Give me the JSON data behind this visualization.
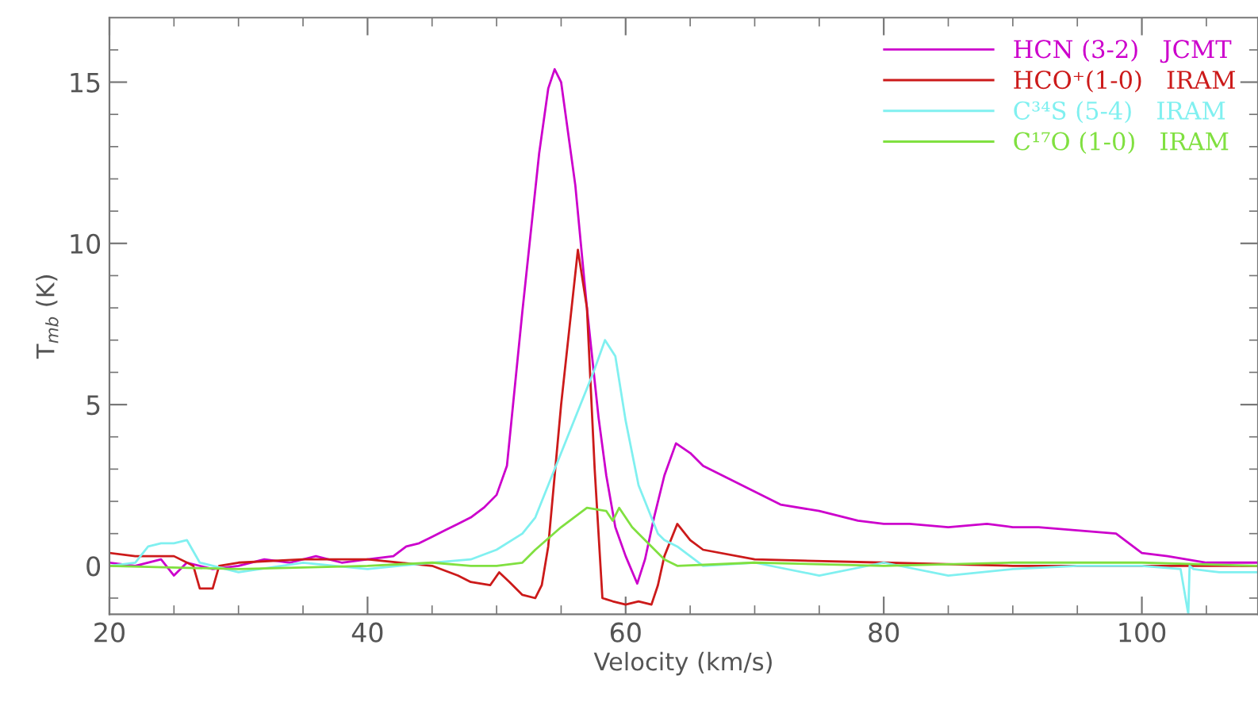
{
  "chart_data": {
    "type": "line",
    "xlabel": "Velocity (km/s)",
    "ylabel": "T$_{mb}$ (K)",
    "xlim": [
      20,
      109
    ],
    "ylim": [
      -1.5,
      17
    ],
    "xticks": [
      20,
      {
        "value": 25,
        "label": null
      },
      {
        "value": 30,
        "label": null
      },
      {
        "value": 35,
        "label": null
      },
      40,
      {
        "value": 45,
        "label": null
      },
      {
        "value": 50,
        "label": null
      },
      {
        "value": 55,
        "label": null
      },
      60,
      {
        "value": 65,
        "label": null
      },
      {
        "value": 70,
        "label": null
      },
      {
        "value": 75,
        "label": null
      },
      80,
      {
        "value": 85,
        "label": null
      },
      {
        "value": 90,
        "label": null
      },
      {
        "value": 95,
        "label": null
      },
      100,
      {
        "value": 105,
        "label": null
      }
    ],
    "yticks": [
      {
        "value": -1,
        "label": null
      },
      0,
      {
        "value": 1,
        "label": null
      },
      {
        "value": 2,
        "label": null
      },
      {
        "value": 3,
        "label": null
      },
      {
        "value": 4,
        "label": null
      },
      5,
      {
        "value": 6,
        "label": null
      },
      {
        "value": 7,
        "label": null
      },
      {
        "value": 8,
        "label": null
      },
      {
        "value": 9,
        "label": null
      },
      10,
      {
        "value": 11,
        "label": null
      },
      {
        "value": 12,
        "label": null
      },
      {
        "value": 13,
        "label": null
      },
      {
        "value": 14,
        "label": null
      },
      15,
      {
        "value": 16,
        "label": null
      }
    ],
    "grid": false,
    "legend": "top right",
    "marker": "none",
    "line_style": "solid",
    "series": [
      {
        "name": "HCN (3-2)   JCMT",
        "color": "#cc00cc",
        "x": [
          20,
          22,
          24,
          25,
          26,
          28,
          30,
          32,
          34,
          36,
          38,
          40,
          42,
          43,
          44,
          45,
          46,
          47,
          48,
          49,
          50,
          50.8,
          52,
          53.3,
          54,
          54.5,
          55,
          56.1,
          57,
          57.9,
          58.5,
          59.2,
          60,
          60.9,
          61.5,
          62.2,
          63,
          63.9,
          65,
          66,
          68,
          70,
          72,
          75,
          78,
          80,
          82,
          85,
          88,
          90,
          92,
          95,
          98,
          100,
          102,
          105,
          109
        ],
        "values": [
          0.1,
          0.0,
          0.2,
          -0.3,
          0.1,
          -0.1,
          0.0,
          0.2,
          0.1,
          0.3,
          0.1,
          0.2,
          0.3,
          0.6,
          0.7,
          0.9,
          1.1,
          1.3,
          1.5,
          1.8,
          2.2,
          3.1,
          7.9,
          12.8,
          14.8,
          15.4,
          15.0,
          11.8,
          8.0,
          4.6,
          2.8,
          1.2,
          0.3,
          -0.55,
          0.2,
          1.5,
          2.8,
          3.8,
          3.5,
          3.1,
          2.7,
          2.3,
          1.9,
          1.7,
          1.4,
          1.3,
          1.3,
          1.2,
          1.3,
          1.2,
          1.2,
          1.1,
          1.0,
          0.4,
          0.3,
          0.1,
          0.1
        ]
      },
      {
        "name": "HCO⁺(1-0)   IRAM",
        "color": "#cc1a1a",
        "x": [
          20,
          22,
          25,
          26.5,
          27,
          28,
          28.5,
          30,
          35,
          40,
          45,
          47,
          48,
          49.5,
          50.2,
          51,
          52,
          53,
          53.5,
          54,
          55,
          56.3,
          57,
          57.6,
          58.2,
          59,
          60,
          61,
          62,
          62.5,
          63,
          64,
          65,
          66,
          70,
          80,
          90,
          100,
          109
        ],
        "values": [
          0.4,
          0.3,
          0.3,
          0.0,
          -0.7,
          -0.7,
          0.0,
          0.1,
          0.2,
          0.2,
          0.0,
          -0.3,
          -0.5,
          -0.6,
          -0.2,
          -0.5,
          -0.9,
          -1.0,
          -0.6,
          0.6,
          5.0,
          9.8,
          8.0,
          3.0,
          -1.0,
          -1.1,
          -1.2,
          -1.1,
          -1.2,
          -0.6,
          0.3,
          1.3,
          0.8,
          0.5,
          0.2,
          0.1,
          0.0,
          0.0,
          0.0
        ]
      },
      {
        "name": "C³⁴S (5-4)   IRAM",
        "color": "#80f0f0",
        "x": [
          20,
          22,
          23,
          24,
          25,
          26,
          27,
          30,
          35,
          40,
          45,
          48,
          50,
          52,
          53,
          55,
          56.5,
          57.5,
          58.4,
          59.2,
          60,
          61,
          61.5,
          62.5,
          63,
          64,
          65,
          66,
          70,
          75,
          80,
          85,
          90,
          95,
          100,
          103,
          103.6,
          103.7,
          104,
          106,
          109
        ],
        "values": [
          0.0,
          0.1,
          0.6,
          0.7,
          0.7,
          0.8,
          0.1,
          -0.2,
          0.1,
          -0.1,
          0.1,
          0.2,
          0.5,
          1.0,
          1.5,
          3.5,
          5.0,
          6.0,
          7.0,
          6.5,
          4.5,
          2.5,
          2.0,
          1.0,
          0.8,
          0.6,
          0.3,
          0.0,
          0.1,
          -0.3,
          0.1,
          -0.3,
          -0.1,
          0.0,
          0.0,
          -0.1,
          -1.5,
          0.0,
          -0.1,
          -0.2,
          -0.2
        ]
      },
      {
        "name": "C¹⁷O (1-0)   IRAM",
        "color": "#80e040",
        "x": [
          20,
          30,
          40,
          45,
          48,
          50,
          52,
          53,
          55,
          56,
          57,
          58.5,
          59,
          59.5,
          60.5,
          61,
          62,
          63,
          64,
          70,
          80,
          90,
          100,
          109
        ],
        "values": [
          0.0,
          -0.1,
          0.0,
          0.1,
          0.0,
          0.0,
          0.1,
          0.5,
          1.2,
          1.5,
          1.8,
          1.7,
          1.4,
          1.8,
          1.2,
          1.0,
          0.6,
          0.2,
          0.0,
          0.1,
          0.0,
          0.1,
          0.1,
          0.0
        ]
      }
    ]
  }
}
